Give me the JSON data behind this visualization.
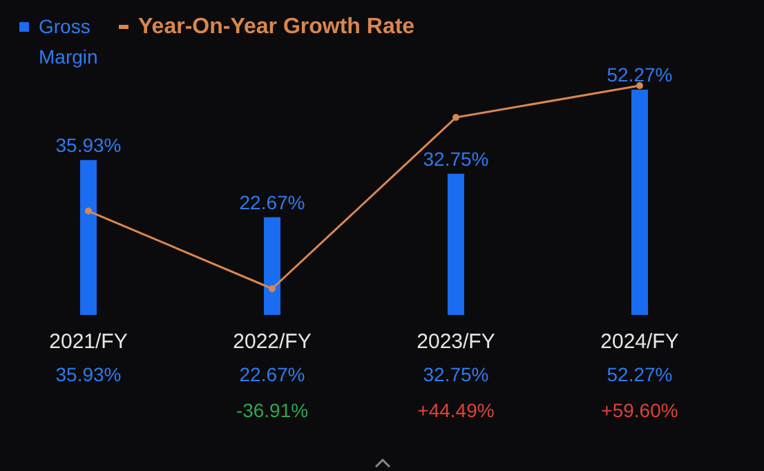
{
  "chart_data": {
    "type": "bar",
    "categories": [
      "2021/FY",
      "2022/FY",
      "2023/FY",
      "2024/FY"
    ],
    "series": [
      {
        "name": "Gross Margin",
        "color": "#1a6cf0",
        "values": [
          35.93,
          22.67,
          32.75,
          52.27
        ],
        "value_labels": [
          "35.93%",
          "22.67%",
          "32.75%",
          "52.27%"
        ]
      },
      {
        "name": "Year-On-Year Growth Rate",
        "type": "line",
        "axis": "y2",
        "color": "#d9874e",
        "values": [
          0,
          -36.91,
          44.49,
          59.6
        ],
        "value_labels": [
          null,
          "-36.91%",
          "+44.49%",
          "+59.60%"
        ]
      }
    ],
    "legend": "top left",
    "marker": "circle"
  }
}
